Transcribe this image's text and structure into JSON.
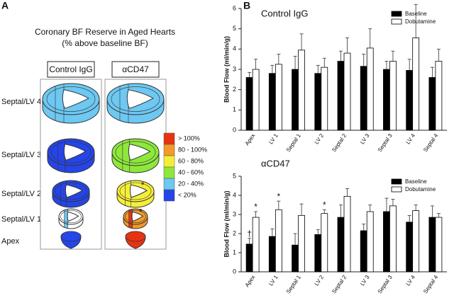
{
  "panels": {
    "a": "A",
    "b": "B"
  },
  "diagram": {
    "title": [
      "Coronary BF Reserve in Aged Hearts",
      "(% above baseline BF)"
    ],
    "rows": [
      "Septal/LV 4",
      "Septal/LV 3",
      "Septal/LV 2",
      "Septal/LV 1",
      "Apex"
    ],
    "columns": [
      {
        "label": "Control IgG",
        "slices": [
          {
            "septal": "#6dc8f2",
            "lv": "#6dc8f2"
          },
          {
            "septal": "#2545e8",
            "lv": "#2545e8"
          },
          {
            "septal": "#2545e8",
            "lv": "#2545e8"
          },
          {
            "septal": "#6dc8f2",
            "lv": "#ffffff"
          },
          {
            "septal": "#2545e8",
            "lv": "#2545e8"
          }
        ]
      },
      {
        "label": "αCD47",
        "slices": [
          {
            "septal": "#6dc8f2",
            "lv": "#6dc8f2"
          },
          {
            "septal": "#8ee83b",
            "lv": "#8ee83b"
          },
          {
            "septal": "#f5ee38",
            "lv": "#f5ee38",
            "mark": "*"
          },
          {
            "septal": "#e63312",
            "lv": "#f39a2a",
            "mark": "*"
          },
          {
            "septal": "#e63312",
            "lv": "#e63312"
          }
        ]
      }
    ],
    "scale": [
      {
        "label": "> 100%",
        "color": "#e63312"
      },
      {
        "label": "80 - 100%",
        "color": "#f39a2a"
      },
      {
        "label": "60 - 80%",
        "color": "#f5ee38"
      },
      {
        "label": "40 - 60%",
        "color": "#8ee83b"
      },
      {
        "label": "20 - 40%",
        "color": "#6dc8f2"
      },
      {
        "label": "< 20%",
        "color": "#2545e8"
      }
    ]
  },
  "chart_data": [
    {
      "type": "bar",
      "title": "Control IgG",
      "y_label": "Blood Flow (ml/min/g)",
      "categories": [
        "Apex",
        "LV 1",
        "Septal 1",
        "LV 2",
        "Septal 2",
        "LV 3",
        "Septal 3",
        "LV 4",
        "Septal 4"
      ],
      "series": [
        {
          "name": "Baseline",
          "color": "#000000",
          "values": [
            2.6,
            2.8,
            3.0,
            2.8,
            3.4,
            3.15,
            3.0,
            2.95,
            2.6
          ],
          "errors": [
            0.25,
            0.4,
            0.65,
            0.4,
            0.5,
            0.6,
            0.4,
            0.55,
            0.5
          ]
        },
        {
          "name": "Dobutamine",
          "color": "#ffffff",
          "values": [
            3.0,
            3.25,
            3.95,
            3.1,
            3.8,
            4.05,
            3.4,
            4.55,
            3.4
          ],
          "errors": [
            0.5,
            0.5,
            0.8,
            0.45,
            0.75,
            0.95,
            0.5,
            1.65,
            0.6
          ]
        }
      ],
      "ylim": [
        0,
        6
      ],
      "yticks": [
        0,
        1,
        2,
        3,
        4,
        5,
        6
      ],
      "legend": "upper right"
    },
    {
      "type": "bar",
      "title": "αCD47",
      "y_label": "Blood Flow (ml/min/g)",
      "categories": [
        "Apex",
        "LV 1",
        "Septal 1",
        "LV 2",
        "Septal 2",
        "LV 3",
        "Septal 3",
        "LV 4",
        "Septal 4"
      ],
      "series": [
        {
          "name": "Baseline",
          "color": "#000000",
          "values": [
            1.45,
            1.85,
            1.4,
            1.95,
            2.85,
            2.15,
            3.15,
            2.6,
            2.85
          ],
          "errors": [
            0.3,
            0.4,
            0.6,
            0.25,
            0.65,
            0.35,
            0.7,
            0.35,
            0.6
          ],
          "markers": [
            "†",
            null,
            null,
            null,
            null,
            null,
            null,
            null,
            null
          ]
        },
        {
          "name": "Dobutamine",
          "color": "#ffffff",
          "values": [
            2.85,
            3.25,
            2.95,
            3.05,
            3.95,
            3.15,
            3.45,
            3.2,
            2.85
          ],
          "errors": [
            0.3,
            0.45,
            0.6,
            0.2,
            0.4,
            0.35,
            0.35,
            0.3,
            0.2
          ],
          "markers": [
            "*",
            "*",
            null,
            "*",
            null,
            null,
            null,
            null,
            null
          ]
        }
      ],
      "ylim": [
        0,
        5
      ],
      "yticks": [
        0,
        1,
        2,
        3,
        4,
        5
      ],
      "legend": "upper right"
    }
  ]
}
